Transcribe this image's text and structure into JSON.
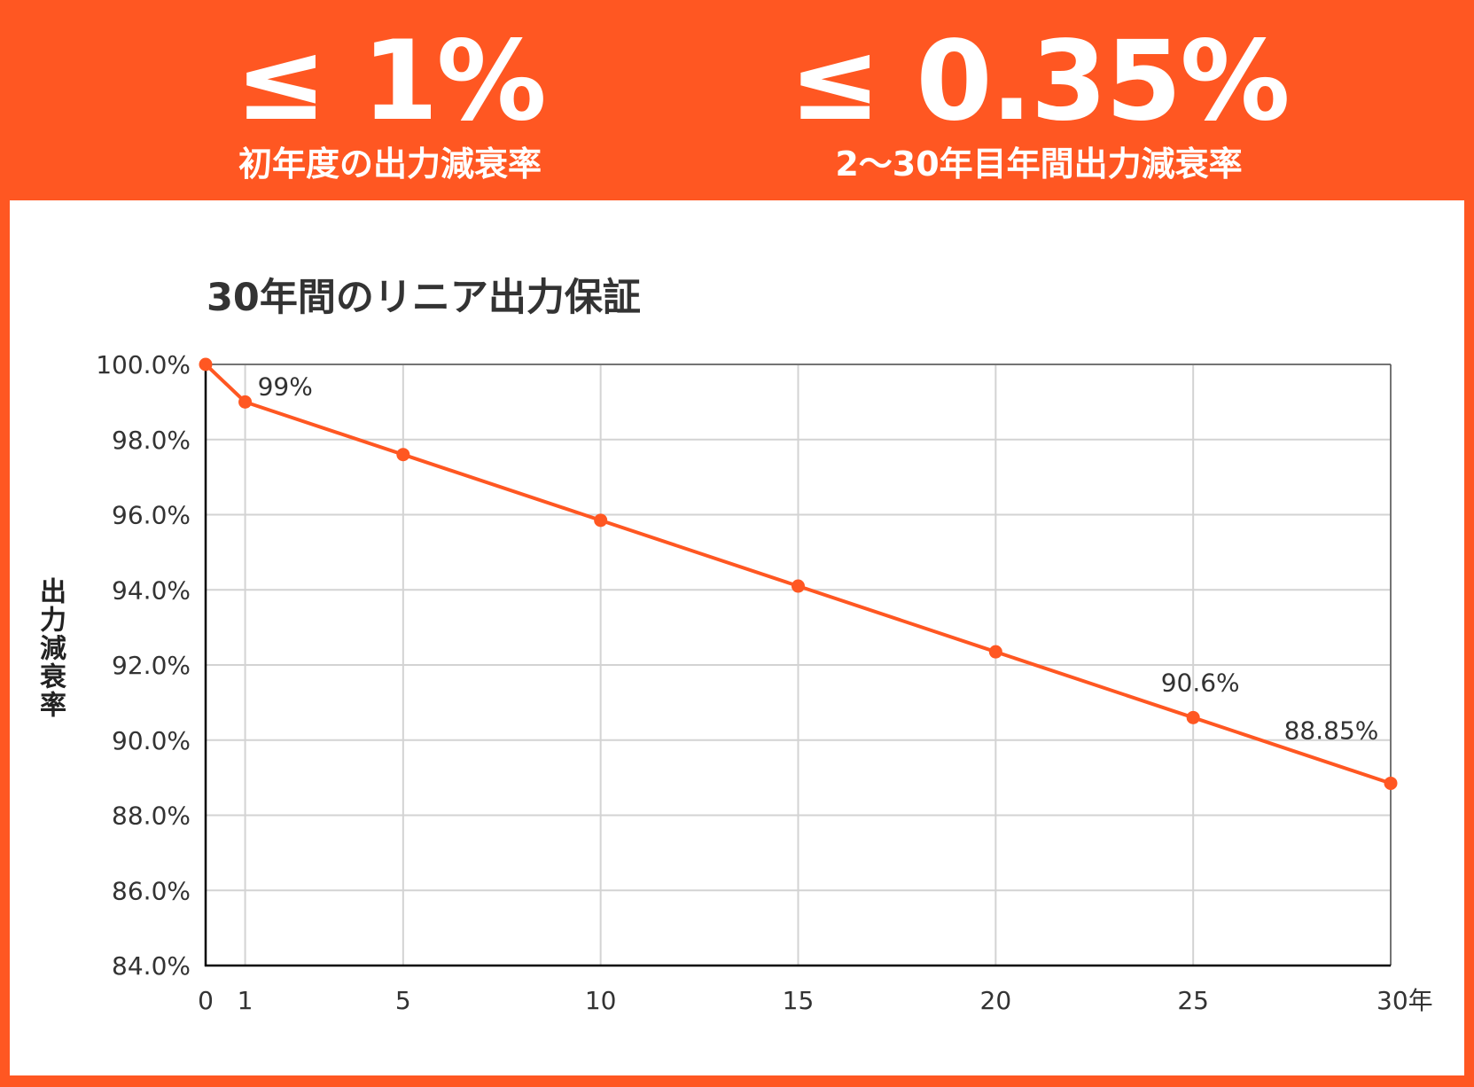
{
  "header": {
    "stat_left": {
      "value": "≤ 1%",
      "caption": "初年度の出力減衰率"
    },
    "stat_right": {
      "value": "≤ 0.35%",
      "caption": "2〜30年目年間出力減衰率"
    }
  },
  "colors": {
    "accent": "#FF5722",
    "grid": "#D3D3D3",
    "axis": "#000000",
    "text": "#333333"
  },
  "chart_data": {
    "type": "line",
    "title": "30年間のリニア出力保証",
    "ylabel": "出力減衰率",
    "xlabel": "",
    "x": [
      0,
      1,
      5,
      10,
      15,
      20,
      25,
      30
    ],
    "series": [
      {
        "values": [
          100.0,
          99.0,
          97.6,
          95.85,
          94.1,
          92.35,
          90.6,
          88.85
        ]
      }
    ],
    "xlim": [
      0,
      30
    ],
    "ylim": [
      84,
      100
    ],
    "x_ticks": [
      {
        "value": 0,
        "label": "0"
      },
      {
        "value": 1,
        "label": "1"
      },
      {
        "value": 5,
        "label": "5"
      },
      {
        "value": 10,
        "label": "10"
      },
      {
        "value": 15,
        "label": "15"
      },
      {
        "value": 20,
        "label": "20"
      },
      {
        "value": 25,
        "label": "25"
      },
      {
        "value": 30,
        "label": "30年"
      }
    ],
    "y_ticks": [
      {
        "value": 84,
        "label": "84.0%"
      },
      {
        "value": 86,
        "label": "86.0%"
      },
      {
        "value": 88,
        "label": "88.0%"
      },
      {
        "value": 90,
        "label": "90.0%"
      },
      {
        "value": 92,
        "label": "92.0%"
      },
      {
        "value": 94,
        "label": "94.0%"
      },
      {
        "value": 96,
        "label": "96.0%"
      },
      {
        "value": 98,
        "label": "98.0%"
      },
      {
        "value": 100,
        "label": "100.0%"
      }
    ],
    "annotations": [
      {
        "x": 1,
        "y": 99.0,
        "label": "99%"
      },
      {
        "x": 25,
        "y": 90.6,
        "label": "90.6%"
      },
      {
        "x": 30,
        "y": 88.85,
        "label": "88.85%"
      }
    ],
    "grid": true,
    "legend": "none"
  }
}
